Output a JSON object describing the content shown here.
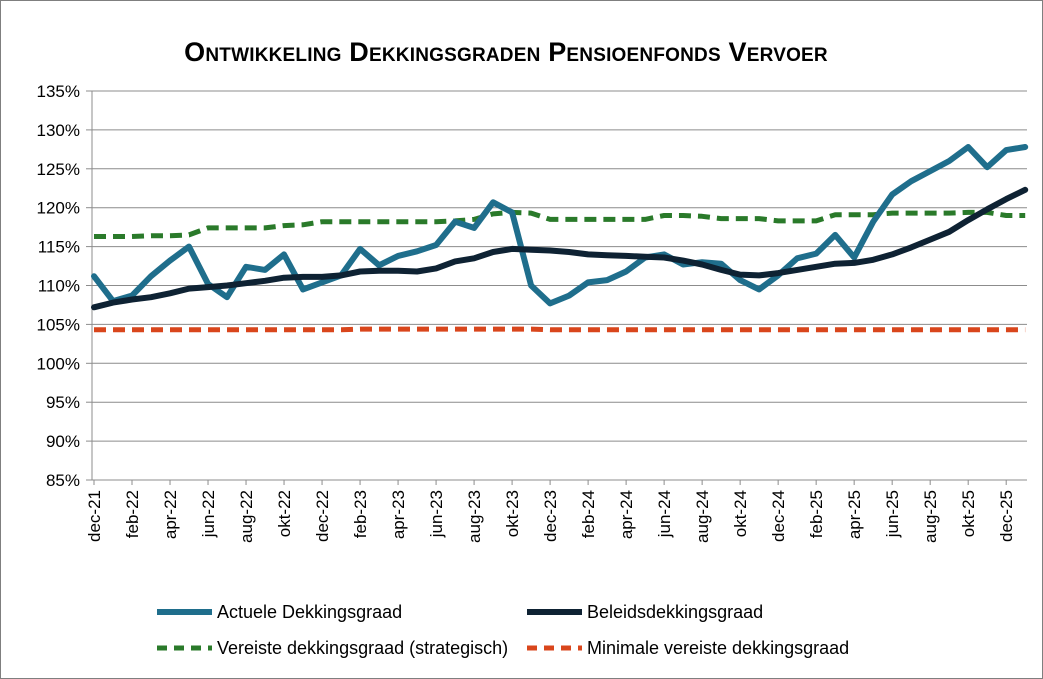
{
  "chart_data": {
    "type": "line",
    "title": "Ontwikkeling Dekkingsgraden Pensioenfonds Vervoer",
    "xlabel": "",
    "ylabel": "",
    "ylim": [
      0.85,
      1.35
    ],
    "y_ticks": [
      "85%",
      "90%",
      "95%",
      "100%",
      "105%",
      "110%",
      "115%",
      "120%",
      "125%",
      "130%",
      "135%"
    ],
    "grid": true,
    "legend_position": "bottom",
    "categories": [
      "dec-21",
      "jan-22",
      "feb-22",
      "mrt-22",
      "apr-22",
      "mei-22",
      "jun-22",
      "jul-22",
      "aug-22",
      "sep-22",
      "okt-22",
      "nov-22",
      "dec-22",
      "jan-23",
      "feb-23",
      "mrt-23",
      "apr-23",
      "mei-23",
      "jun-23",
      "jul-23",
      "aug-23",
      "sep-23",
      "okt-23",
      "nov-23",
      "dec-23",
      "jan-24",
      "feb-24",
      "mrt-24",
      "apr-24",
      "mei-24",
      "jun-24",
      "jul-24",
      "aug-24",
      "sep-24",
      "okt-24",
      "nov-24",
      "dec-24",
      "jan-25",
      "feb-25",
      "mrt-25",
      "apr-25",
      "mei-25",
      "jun-25",
      "jul-25",
      "aug-25",
      "sep-25",
      "okt-25",
      "nov-25",
      "dec-25",
      "jan-26"
    ],
    "x_tick_labels": [
      "dec-21",
      "feb-22",
      "apr-22",
      "jun-22",
      "aug-22",
      "okt-22",
      "dec-22",
      "feb-23",
      "apr-23",
      "jun-23",
      "aug-23",
      "okt-23",
      "dec-23",
      "feb-24",
      "apr-24",
      "jun-24",
      "aug-24",
      "okt-24",
      "dec-24",
      "feb-25",
      "apr-25",
      "jun-25",
      "aug-25",
      "okt-25",
      "dec-25"
    ],
    "series": [
      {
        "name": "Actuele Dekkingsgraad",
        "color": "#1f6e8c",
        "style": "solid",
        "values": [
          1.112,
          1.08,
          1.087,
          1.112,
          1.132,
          1.15,
          1.102,
          1.085,
          1.124,
          1.12,
          1.14,
          1.095,
          1.104,
          1.113,
          1.147,
          1.126,
          1.138,
          1.144,
          1.152,
          1.182,
          1.174,
          1.207,
          1.194,
          1.1,
          1.077,
          1.087,
          1.104,
          1.107,
          1.118,
          1.136,
          1.14,
          1.127,
          1.13,
          1.128,
          1.107,
          1.095,
          1.113,
          1.135,
          1.141,
          1.165,
          1.136,
          1.182,
          1.217,
          1.234,
          1.247,
          1.26,
          1.278,
          1.252,
          1.274,
          1.278
        ]
      },
      {
        "name": "Beleidsdekkingsgraad",
        "color": "#0e2233",
        "style": "solid",
        "values": [
          1.072,
          1.078,
          1.082,
          1.085,
          1.09,
          1.096,
          1.098,
          1.1,
          1.103,
          1.106,
          1.11,
          1.111,
          1.111,
          1.113,
          1.118,
          1.119,
          1.119,
          1.118,
          1.122,
          1.131,
          1.135,
          1.143,
          1.147,
          1.146,
          1.145,
          1.143,
          1.14,
          1.139,
          1.138,
          1.137,
          1.136,
          1.132,
          1.127,
          1.12,
          1.114,
          1.113,
          1.116,
          1.12,
          1.124,
          1.128,
          1.129,
          1.133,
          1.14,
          1.149,
          1.159,
          1.169,
          1.184,
          1.198,
          1.211,
          1.223
        ]
      },
      {
        "name": "Vereiste dekkingsgraad (strategisch)",
        "color": "#2a7a2a",
        "style": "dashed",
        "values": [
          1.163,
          1.163,
          1.163,
          1.164,
          1.164,
          1.165,
          1.174,
          1.174,
          1.174,
          1.174,
          1.177,
          1.178,
          1.182,
          1.182,
          1.182,
          1.182,
          1.182,
          1.182,
          1.182,
          1.183,
          1.185,
          1.192,
          1.194,
          1.193,
          1.185,
          1.185,
          1.185,
          1.185,
          1.185,
          1.185,
          1.19,
          1.19,
          1.189,
          1.186,
          1.186,
          1.186,
          1.183,
          1.183,
          1.183,
          1.191,
          1.191,
          1.191,
          1.193,
          1.193,
          1.193,
          1.193,
          1.194,
          1.194,
          1.19,
          1.19
        ]
      },
      {
        "name": "Minimale vereiste dekkingsgraad",
        "color": "#d9461c",
        "style": "dashed",
        "values": [
          1.043,
          1.043,
          1.043,
          1.043,
          1.043,
          1.043,
          1.043,
          1.043,
          1.043,
          1.043,
          1.043,
          1.043,
          1.043,
          1.043,
          1.044,
          1.044,
          1.044,
          1.044,
          1.044,
          1.044,
          1.044,
          1.044,
          1.044,
          1.044,
          1.043,
          1.043,
          1.043,
          1.043,
          1.043,
          1.043,
          1.043,
          1.043,
          1.043,
          1.043,
          1.043,
          1.043,
          1.043,
          1.043,
          1.043,
          1.043,
          1.043,
          1.043,
          1.043,
          1.043,
          1.043,
          1.043,
          1.043,
          1.043,
          1.043,
          1.043
        ]
      }
    ]
  }
}
